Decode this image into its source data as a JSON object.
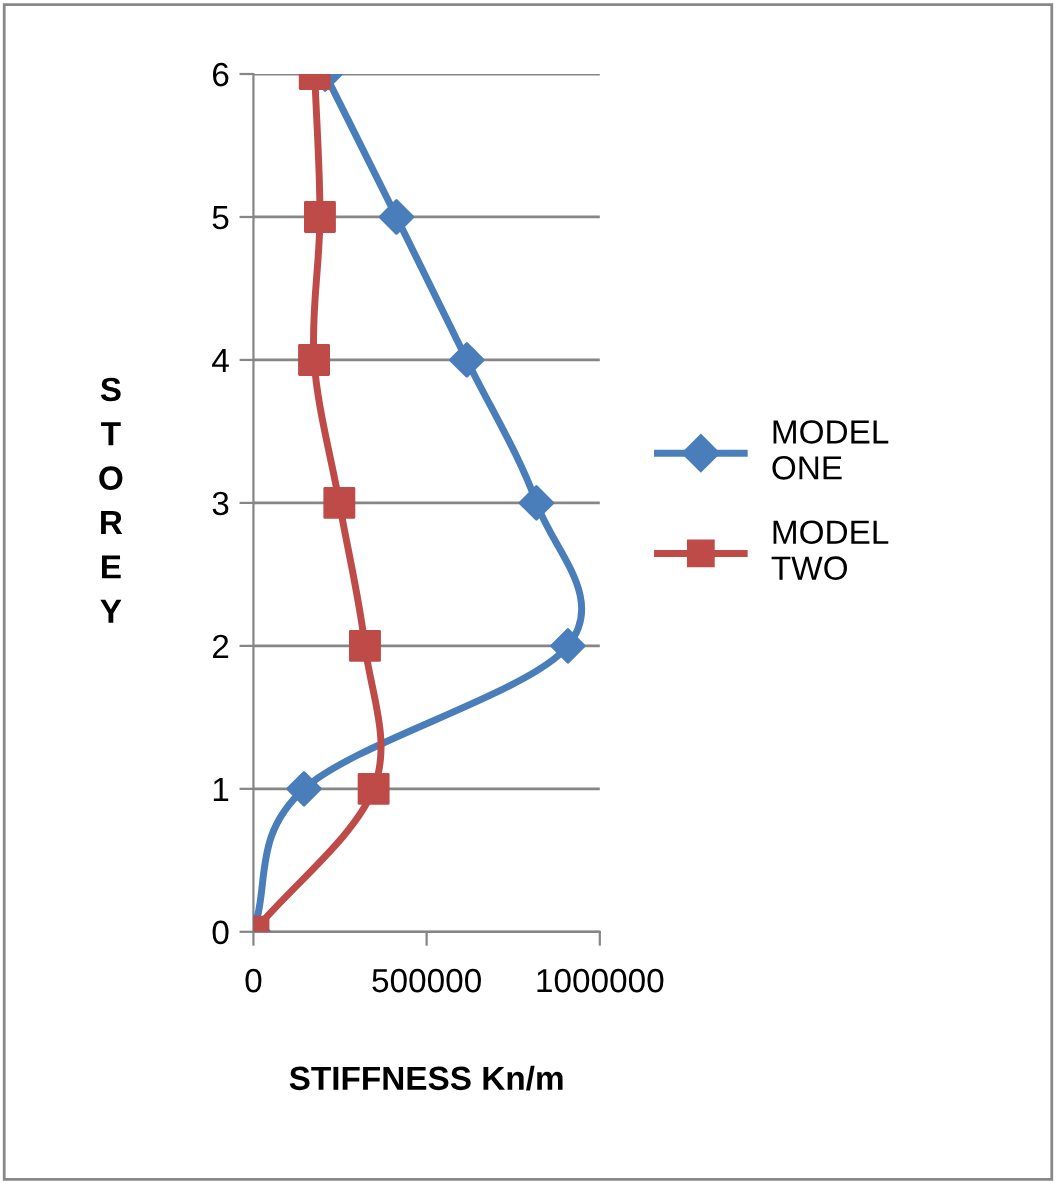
{
  "chart_data": {
    "type": "line",
    "xlabel": "STIFFNESS Kn/m",
    "ylabel": "STOREY",
    "series": [
      {
        "name": "MODEL ONE",
        "color": "#4a7ebb",
        "marker": "diamond",
        "x": [
          0,
          146000,
          908000,
          817000,
          616000,
          413000,
          207000
        ],
        "values": [
          0,
          1,
          2,
          3,
          4,
          5,
          6
        ]
      },
      {
        "name": "MODEL TWO",
        "color": "#be4b48",
        "marker": "square",
        "x": [
          0,
          347000,
          322000,
          248000,
          175000,
          192000,
          177000
        ],
        "values": [
          0,
          1,
          2,
          3,
          4,
          5,
          6
        ]
      }
    ],
    "xlim": [
      0,
      1000000
    ],
    "xticks": [
      0,
      500000,
      1000000
    ],
    "ylim": [
      0,
      6
    ],
    "yticks": [
      0,
      1,
      2,
      3,
      4,
      5,
      6
    ],
    "grid": "y",
    "legend": "right",
    "line_style": "solid"
  }
}
